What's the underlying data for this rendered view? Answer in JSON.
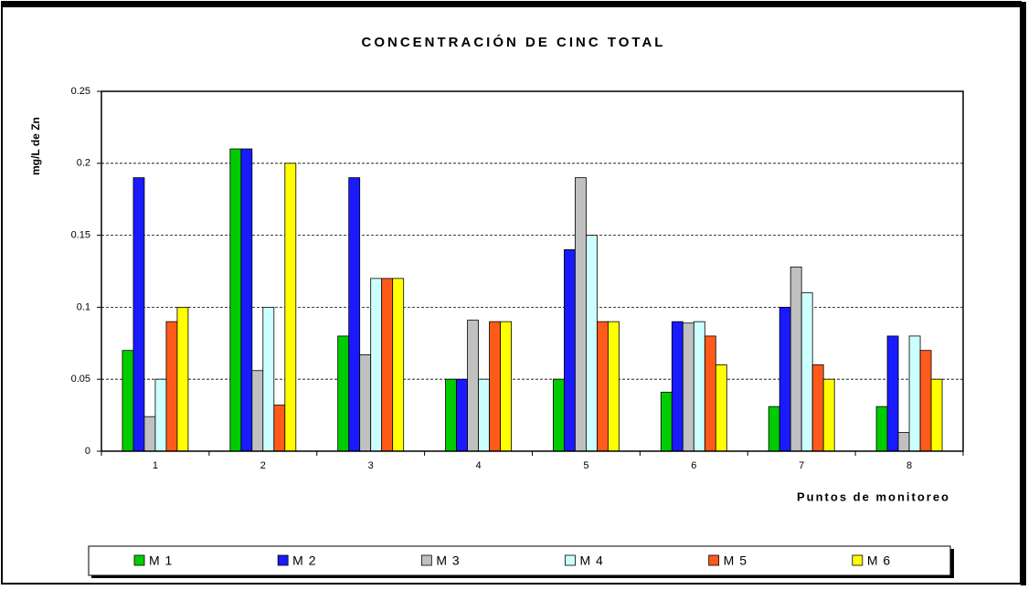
{
  "chart_data": {
    "type": "bar",
    "title": "CONCENTRACIÓN DE CINC TOTAL",
    "x_label": "Puntos de monitoreo",
    "y_label": "mg/L de Zn",
    "categories": [
      "1",
      "2",
      "3",
      "4",
      "5",
      "6",
      "7",
      "8"
    ],
    "series": [
      {
        "name": "M 1",
        "color": "#00cc00",
        "values": [
          0.07,
          0.21,
          0.08,
          0.05,
          0.05,
          0.041,
          0.031,
          0.031
        ]
      },
      {
        "name": "M 2",
        "color": "#1a1aff",
        "values": [
          0.19,
          0.21,
          0.19,
          0.05,
          0.14,
          0.09,
          0.1,
          0.08
        ]
      },
      {
        "name": "M 3",
        "color": "#c0c0c0",
        "values": [
          0.024,
          0.056,
          0.067,
          0.091,
          0.19,
          0.089,
          0.128,
          0.013
        ]
      },
      {
        "name": "M 4",
        "color": "#ccffff",
        "values": [
          0.05,
          0.1,
          0.12,
          0.05,
          0.15,
          0.09,
          0.11,
          0.08
        ]
      },
      {
        "name": "M 5",
        "color": "#ff5a1a",
        "values": [
          0.09,
          0.032,
          0.12,
          0.09,
          0.09,
          0.08,
          0.06,
          0.07
        ]
      },
      {
        "name": "M 6",
        "color": "#ffff00",
        "values": [
          0.1,
          0.2,
          0.12,
          0.09,
          0.09,
          0.06,
          0.05,
          0.05
        ]
      }
    ],
    "ylim": [
      0,
      0.25
    ],
    "yticks": [
      0,
      0.05,
      0.1,
      0.15,
      0.2,
      0.25
    ],
    "grid": true,
    "legend": "bottom"
  }
}
